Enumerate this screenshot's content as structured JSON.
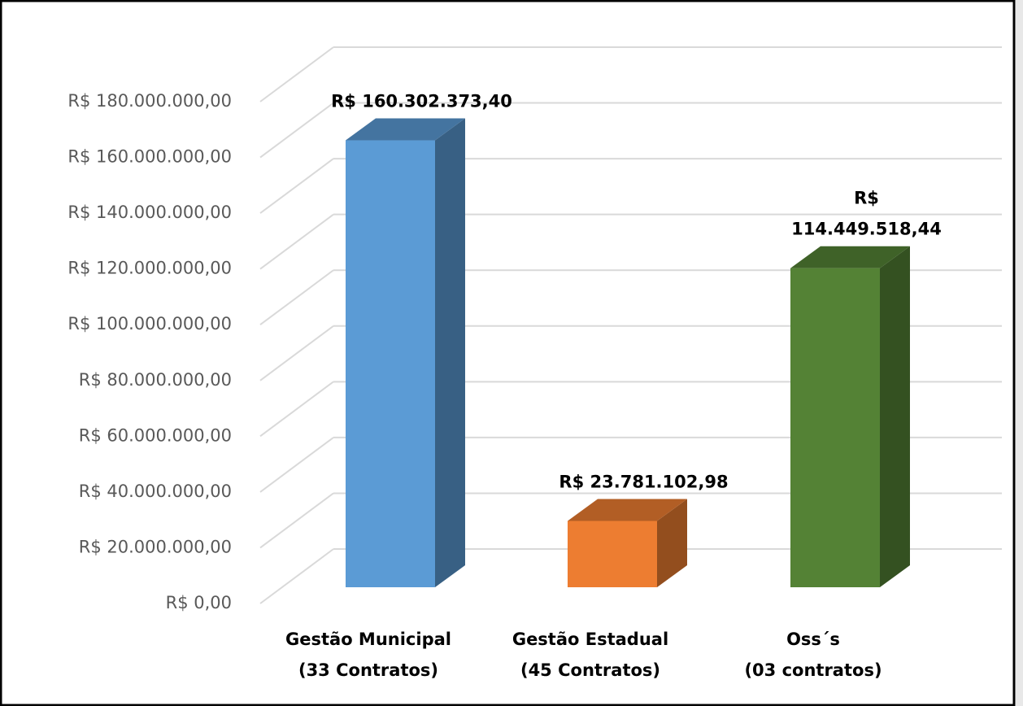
{
  "chart_data": {
    "type": "bar3d",
    "categories": [
      "Gestão Municipal\n(33 Contratos)",
      "Gestão Estadual\n(45 Contratos)",
      "Oss´s\n(03 contratos)"
    ],
    "values": [
      160302373.4,
      23781102.98,
      114449518.44
    ],
    "value_labels": [
      "R$ 160.302.373,40",
      "R$ 23.781.102,98",
      "R$\n114.449.518,44"
    ],
    "colors": [
      "#5b9bd5",
      "#ed7d31",
      "#548235"
    ],
    "ylim": [
      0,
      180000000
    ],
    "yticks": [
      {
        "value": 0,
        "label": "R$ 0,00"
      },
      {
        "value": 20000000,
        "label": "R$ 20.000.000,00"
      },
      {
        "value": 40000000,
        "label": "R$ 40.000.000,00"
      },
      {
        "value": 60000000,
        "label": "R$ 60.000.000,00"
      },
      {
        "value": 80000000,
        "label": "R$ 80.000.000,00"
      },
      {
        "value": 100000000,
        "label": "R$ 100.000.000,00"
      },
      {
        "value": 120000000,
        "label": "R$ 120.000.000,00"
      },
      {
        "value": 140000000,
        "label": "R$ 140.000.000,00"
      },
      {
        "value": 160000000,
        "label": "R$ 160.000.000,00"
      },
      {
        "value": 180000000,
        "label": "R$ 180.000.000,00"
      }
    ],
    "grid": true
  }
}
